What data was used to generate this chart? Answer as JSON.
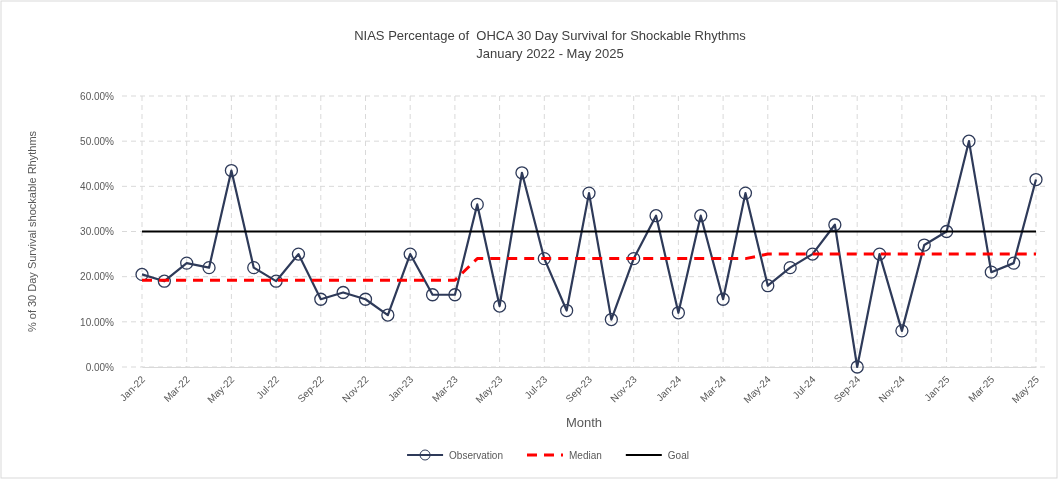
{
  "chart_data": {
    "type": "line",
    "title": "NIAS Percentage of  OHCA 30 Day Survival for Shockable Rhythms",
    "subtitle": "January 2022 - May 2025",
    "xlabel": "Month",
    "ylabel": "% of 30 Day Survival shockable Rhythms",
    "categories": [
      "Jan-22",
      null,
      "Mar-22",
      null,
      "May-22",
      null,
      "Jul-22",
      null,
      "Sep-22",
      null,
      "Nov-22",
      null,
      "Jan-23",
      null,
      "Mar-23",
      null,
      "May-23",
      null,
      "Jul-23",
      null,
      "Sep-23",
      null,
      "Nov-23",
      null,
      "Jan-24",
      null,
      "Mar-24",
      null,
      "May-24",
      null,
      "Jul-24",
      null,
      "Sep-24",
      null,
      "Nov-24",
      null,
      "Jan-25",
      null,
      "Mar-25",
      null,
      "May-25"
    ],
    "series": [
      {
        "name": "Observation",
        "color": "#2e3a59",
        "marker": "circle",
        "line_style": "solid",
        "values": [
          20.5,
          19,
          23,
          22,
          43.5,
          22,
          19,
          25,
          15,
          16.5,
          15,
          11.5,
          25,
          16,
          16,
          36,
          13.5,
          43,
          24,
          12.5,
          38.5,
          10.5,
          24,
          33.5,
          12,
          33.5,
          15,
          38.5,
          18,
          22,
          25,
          31.5,
          0,
          25,
          8,
          27,
          30,
          50,
          21,
          23,
          41.5
        ]
      },
      {
        "name": "Median",
        "color": "#ff0000",
        "marker": "none",
        "line_style": "dashed",
        "values": [
          19.2,
          19.2,
          19.2,
          19.2,
          19.2,
          19.2,
          19.2,
          19.2,
          19.2,
          19.2,
          19.2,
          19.2,
          19.2,
          19.2,
          19.2,
          24,
          24,
          24,
          24,
          24,
          24,
          24,
          24,
          24,
          24,
          24,
          24,
          24,
          25,
          25,
          25,
          25,
          25,
          25,
          25,
          25,
          25,
          25,
          25,
          25,
          25
        ]
      },
      {
        "name": "Goal",
        "color": "#000000",
        "marker": "none",
        "line_style": "solid",
        "values": [
          30,
          30,
          30,
          30,
          30,
          30,
          30,
          30,
          30,
          30,
          30,
          30,
          30,
          30,
          30,
          30,
          30,
          30,
          30,
          30,
          30,
          30,
          30,
          30,
          30,
          30,
          30,
          30,
          30,
          30,
          30,
          30,
          30,
          30,
          30,
          30,
          30,
          30,
          30,
          30,
          30
        ]
      }
    ],
    "ylim": [
      0,
      60
    ],
    "yticks": [
      {
        "value": 0,
        "label": "0.00%"
      },
      {
        "value": 10,
        "label": "10.00%"
      },
      {
        "value": 20,
        "label": "20.00%"
      },
      {
        "value": 30,
        "label": "30.00%"
      },
      {
        "value": 40,
        "label": "40.00%"
      },
      {
        "value": 50,
        "label": "50.00%"
      },
      {
        "value": 60,
        "label": "60.00%"
      }
    ],
    "grid": true,
    "legend": "bottom"
  }
}
